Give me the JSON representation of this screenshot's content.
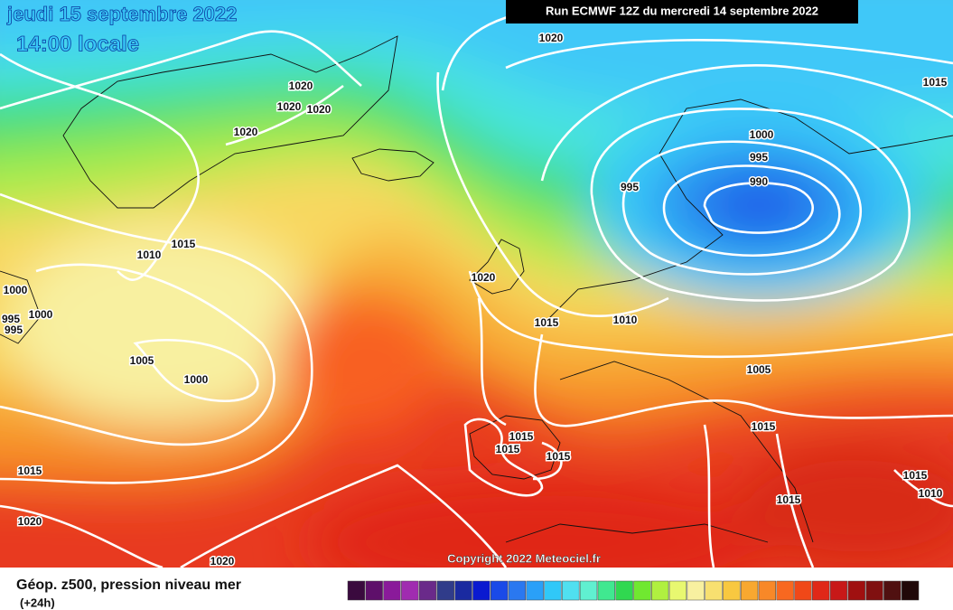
{
  "header": {
    "date": "jeudi 15 septembre 2022",
    "time": "14:00 locale",
    "run": "Run ECMWF 12Z du mercredi 14 septembre 2022"
  },
  "isobars": [
    1020,
    1015,
    1020,
    1020,
    1020,
    1020,
    1000,
    995,
    995,
    990,
    1015,
    1010,
    1000,
    995,
    1000,
    995,
    1020,
    1015,
    1010,
    1005,
    1000,
    1005,
    1015,
    1015,
    1015,
    1015,
    1015,
    1015,
    1010,
    1015,
    1020,
    1020
  ],
  "copyright": "Copyright 2022 Meteociel.fr",
  "legend": {
    "title": "Géop. z500, pression niveau mer",
    "lead": "(+24h)",
    "colors": [
      "#3a0a3e",
      "#5e0f6a",
      "#8a1a9a",
      "#a02cb0",
      "#6a2a8a",
      "#303c8a",
      "#1a2aa0",
      "#0a1ad0",
      "#1a4ae8",
      "#2a78f0",
      "#2aa0f8",
      "#30c8f8",
      "#50e0f0",
      "#60f0d0",
      "#40e890",
      "#30d850",
      "#70e830",
      "#b0f040",
      "#e8f870",
      "#f8f0a0",
      "#f8e070",
      "#f8c840",
      "#f8a830",
      "#f88828",
      "#f86820",
      "#f04818",
      "#e02818",
      "#c81818",
      "#a01010",
      "#801010",
      "#501010",
      "#200808"
    ]
  }
}
